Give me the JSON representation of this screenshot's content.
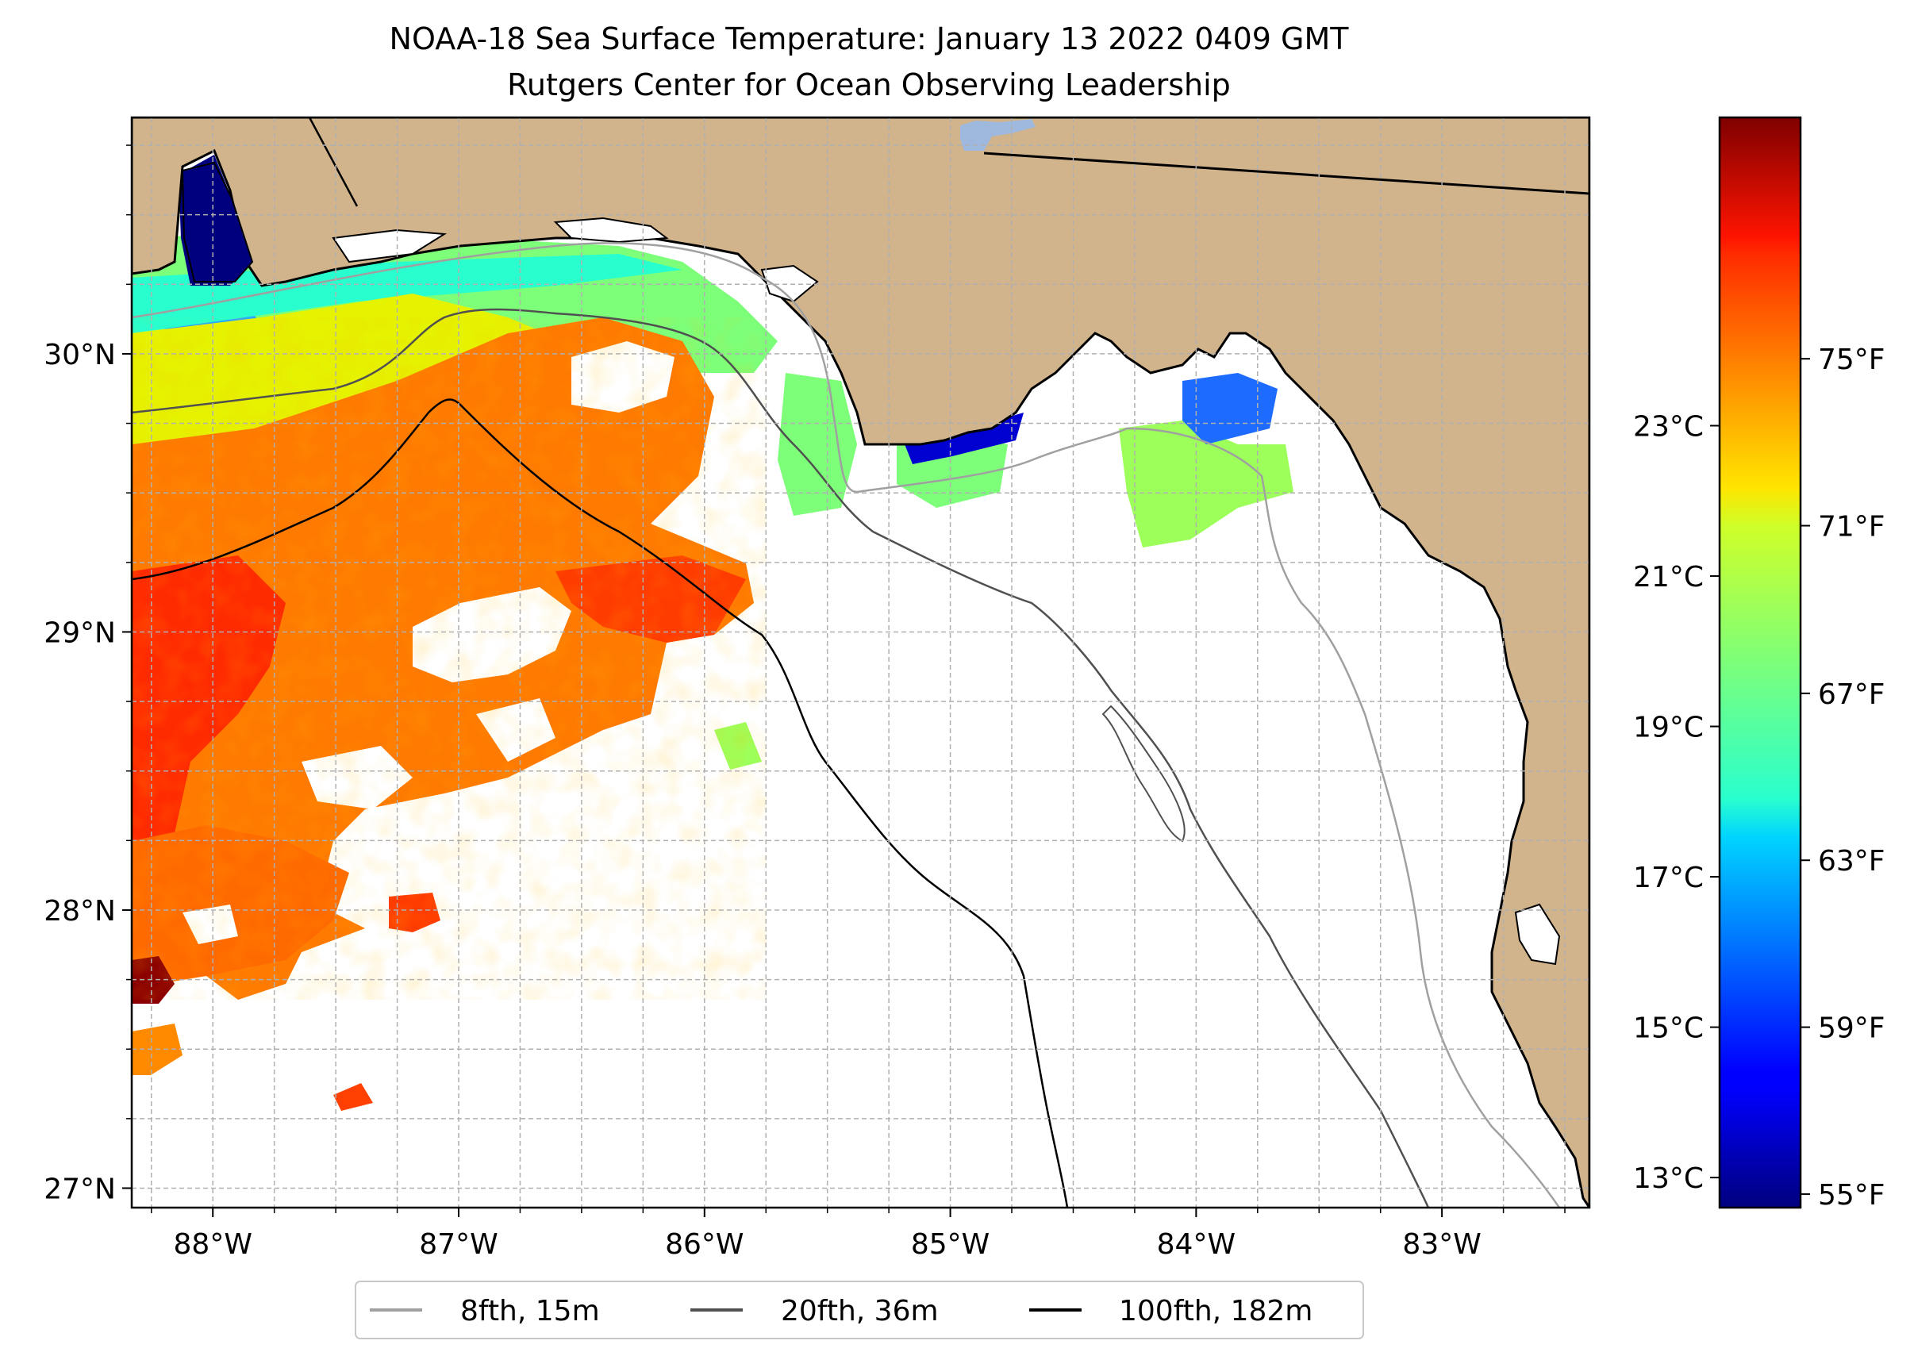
{
  "title": {
    "line1": "NOAA-18 Sea Surface Temperature: January 13 2022 0409 GMT",
    "line2": "Rutgers Center for Ocean Observing Leadership"
  },
  "map": {
    "lon_range": [
      -88.33,
      -82.4
    ],
    "lat_range": [
      26.93,
      30.85
    ],
    "lon_ticks": [
      {
        "value": -88,
        "label": "88°W"
      },
      {
        "value": -87,
        "label": "87°W"
      },
      {
        "value": -86,
        "label": "86°W"
      },
      {
        "value": -85,
        "label": "85°W"
      },
      {
        "value": -84,
        "label": "84°W"
      },
      {
        "value": -83,
        "label": "83°W"
      }
    ],
    "lat_ticks": [
      {
        "value": 27,
        "label": "27°N"
      },
      {
        "value": 28,
        "label": "28°N"
      },
      {
        "value": 29,
        "label": "29°N"
      },
      {
        "value": 30,
        "label": "30°N"
      }
    ],
    "minor_grid_step_deg": 0.25,
    "colors": {
      "land": "#d2b48c",
      "ocean": "#ffffff",
      "lake": "#9fb8de",
      "grid": "#b0b0b0",
      "coast": "#000000"
    }
  },
  "legend": {
    "items": [
      {
        "label": "8fth, 15m",
        "color": "#a0a0a0"
      },
      {
        "label": "20fth, 36m",
        "color": "#505050"
      },
      {
        "label": "100fth, 182m",
        "color": "#000000"
      }
    ]
  },
  "colorbar": {
    "colormap": "jet",
    "range_c": [
      12.6,
      27.1
    ],
    "celsius_ticks": [
      {
        "value": 13,
        "label": "13°C"
      },
      {
        "value": 15,
        "label": "15°C"
      },
      {
        "value": 17,
        "label": "17°C"
      },
      {
        "value": 19,
        "label": "19°C"
      },
      {
        "value": 21,
        "label": "21°C"
      },
      {
        "value": 23,
        "label": "23°C"
      }
    ],
    "fahrenheit_ticks": [
      {
        "value_c": 12.78,
        "label": "55°F"
      },
      {
        "value_c": 15.0,
        "label": "59°F"
      },
      {
        "value_c": 17.22,
        "label": "63°F"
      },
      {
        "value_c": 19.44,
        "label": "67°F"
      },
      {
        "value_c": 21.67,
        "label": "71°F"
      },
      {
        "value_c": 23.89,
        "label": "75°F"
      }
    ]
  }
}
